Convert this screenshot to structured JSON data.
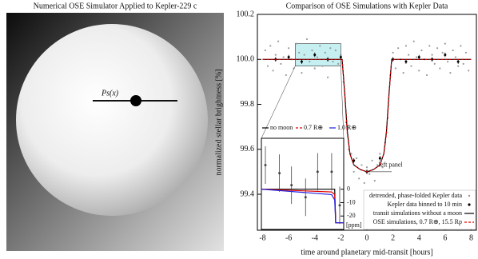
{
  "simulator": {
    "title": "Numerical OSE Simulator Applied to Kepler-229 c",
    "label": "Ps(x)"
  },
  "chart_data": [
    {
      "type": "scatter",
      "title": "Comparison of OSE Simulations with Kepler Data",
      "xlabel": "time around planetary mid-transit [hours]",
      "ylabel": "normalized stellar brightness [%]",
      "xlim": [
        -8.4,
        8.4
      ],
      "xticks": [
        -8,
        -6,
        -4,
        -2,
        0,
        2,
        4,
        6,
        8
      ],
      "ylim": [
        99.24,
        100.2
      ],
      "yticks": [
        99.4,
        99.6,
        99.8,
        {
          "value": 100,
          "label": "100.0"
        },
        100.2
      ],
      "annotation": "left panel",
      "zoom_box": {
        "x": [
          -5.5,
          -2
        ],
        "y": [
          99.97,
          100.07
        ],
        "color": "#aee8ec"
      },
      "series": [
        {
          "name": "detrended, phase-folded Kepler data",
          "color": "#9a9a9a",
          "marker": "dot",
          "x": [
            -7.8,
            -7.6,
            -7.4,
            -7.2,
            -7.0,
            -6.8,
            -6.6,
            -6.4,
            -6.2,
            -6.0,
            -5.8,
            -5.6,
            -5.4,
            -5.2,
            -5.0,
            -4.8,
            -4.6,
            -4.4,
            -4.2,
            -4.0,
            -3.8,
            -3.6,
            -3.4,
            -3.2,
            -3.0,
            -2.8,
            -2.6,
            -2.4,
            -2.2,
            -2.0,
            -1.8,
            -1.6,
            -1.4,
            -1.2,
            -1.0,
            -0.8,
            -0.6,
            -0.4,
            -0.2,
            0.0,
            0.2,
            0.4,
            0.6,
            0.8,
            1.0,
            1.2,
            1.4,
            1.6,
            1.8,
            2.0,
            2.2,
            2.4,
            2.6,
            2.8,
            3.0,
            3.2,
            3.4,
            3.6,
            3.8,
            4.0,
            4.2,
            4.4,
            4.6,
            4.8,
            5.0,
            5.2,
            5.4,
            5.6,
            5.8,
            6.0,
            6.2,
            6.4,
            6.6,
            6.8,
            7.0,
            7.2,
            7.4,
            7.6,
            7.8
          ],
          "values": [
            100.04,
            99.97,
            100.06,
            99.95,
            100.02,
            100.08,
            99.98,
            100.01,
            99.93,
            100.05,
            100.0,
            99.96,
            100.07,
            100.03,
            99.94,
            100.02,
            100.09,
            99.99,
            100.04,
            99.96,
            100.01,
            100.06,
            99.97,
            100.03,
            99.92,
            100.05,
            99.99,
            100.04,
            99.98,
            100.02,
            99.9,
            99.72,
            99.6,
            99.58,
            99.5,
            99.56,
            99.47,
            99.53,
            99.45,
            99.52,
            99.49,
            99.55,
            99.46,
            99.53,
            99.58,
            99.52,
            99.63,
            99.74,
            99.93,
            100.03,
            99.96,
            100.05,
            100.0,
            99.94,
            100.06,
            100.02,
            99.97,
            100.08,
            100.01,
            99.95,
            100.04,
            100.0,
            99.93,
            100.06,
            100.02,
            99.98,
            100.05,
            99.96,
            100.03,
            100.07,
            99.99,
            99.94,
            100.04,
            100.01,
            99.97,
            100.06,
            99.98,
            100.03,
            99.95
          ]
        },
        {
          "name": "Kepler data binned to 10 min",
          "color": "#000000",
          "marker": "errorbar",
          "x": [
            -7,
            -6,
            -5,
            -4,
            -3,
            -2,
            -1,
            0,
            1,
            2,
            3,
            4,
            5,
            6,
            7
          ],
          "values": [
            100.0,
            100.01,
            99.99,
            100.02,
            100.0,
            100.01,
            99.55,
            99.5,
            99.56,
            100.0,
            99.99,
            100.01,
            100.0,
            100.02,
            99.99
          ],
          "errors": [
            0.01,
            0.01,
            0.01,
            0.01,
            0.01,
            0.01,
            0.01,
            0.01,
            0.01,
            0.01,
            0.01,
            0.01,
            0.01,
            0.01,
            0.01
          ]
        },
        {
          "name": "transit simulations without a moon",
          "color": "#000000",
          "marker": "line",
          "x": [
            -8,
            -1.9,
            -1.7,
            -1.5,
            -1.3,
            -1.0,
            -0.5,
            0,
            0.5,
            1.0,
            1.3,
            1.5,
            1.7,
            1.9,
            8
          ],
          "values": [
            100,
            100,
            99.85,
            99.68,
            99.58,
            99.53,
            99.51,
            99.5,
            99.51,
            99.53,
            99.58,
            99.68,
            99.85,
            100,
            100
          ]
        },
        {
          "name": "OSE simulations, 0.7 R⊕, 15.5 Rp",
          "color": "#e00000",
          "marker": "dashed",
          "x": [
            -8,
            -1.9,
            -1.7,
            -1.5,
            -1.3,
            -1.0,
            -0.5,
            0,
            0.5,
            1.0,
            1.3,
            1.5,
            1.7,
            1.9,
            8
          ],
          "values": [
            100,
            100,
            99.84,
            99.67,
            99.58,
            99.53,
            99.51,
            99.5,
            99.51,
            99.53,
            99.58,
            99.67,
            99.84,
            100,
            100
          ]
        }
      ]
    },
    {
      "type": "line",
      "ylabel": "[ppm]",
      "xlim": [
        -5.5,
        -1.4
      ],
      "ylim": [
        -30,
        38
      ],
      "yticks": [
        0,
        -10,
        -20
      ],
      "series": [
        {
          "name": "no moon",
          "color": "#000000",
          "x": [
            -5.5,
            -2.0,
            -1.85,
            -1.8,
            -1.4
          ],
          "values": [
            0,
            0,
            0,
            -25,
            -25
          ]
        },
        {
          "name": "0.7 R⊕",
          "color": "#e00000",
          "x": [
            -5.5,
            -2.0,
            -1.85,
            -1.8,
            -1.4
          ],
          "values": [
            0,
            -2,
            -4,
            -25,
            -25
          ]
        },
        {
          "name": "1.0 R⊕",
          "color": "#2020e0",
          "x": [
            -5.5,
            -2.0,
            -1.85,
            -1.8,
            -1.4
          ],
          "values": [
            0,
            -4,
            -8,
            -25,
            -25
          ]
        },
        {
          "color": "#444444",
          "marker": "errorbar",
          "x": [
            -5.3,
            -4.6,
            -4.0,
            -3.3,
            -2.7,
            -2.0,
            -1.6
          ],
          "values": [
            18,
            12,
            3,
            -6,
            13,
            13,
            -12
          ],
          "errors": [
            14,
            14,
            14,
            14,
            14,
            14,
            14
          ]
        }
      ]
    }
  ]
}
